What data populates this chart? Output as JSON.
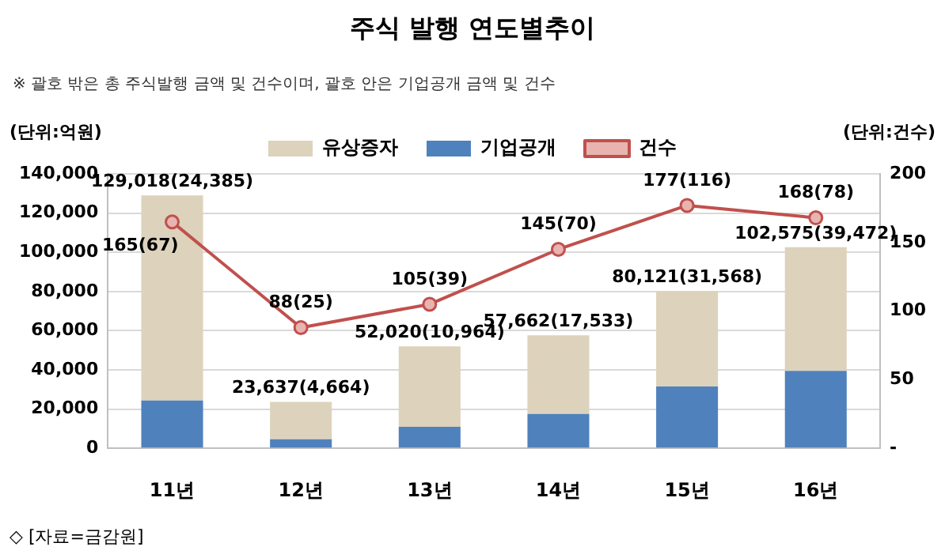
{
  "chart_data": {
    "type": "bar",
    "title": "주식 발행 연도별추이",
    "subtitle": "※ 괄호 밖은 총 주식발행 금액 및 건수이며, 괄호 안은 기업공개 금액 및 건수",
    "ylabel": "(단위:억원)",
    "y2label": "(단위:건수)",
    "annotations": [
      "◇ [자료=금감원]",
      {
        "text": "129,018(24,385)",
        "x": "11년",
        "y": 129018
      },
      {
        "text": "23,637(4,664)",
        "x": "12년",
        "y": 23637
      },
      {
        "text": "52,020(10,964)",
        "x": "13년",
        "y": 52020
      },
      {
        "text": "57,662(17,533)",
        "x": "14년",
        "y": 57662
      },
      {
        "text": "80,121(31,568)",
        "x": "15년",
        "y": 80121
      },
      {
        "text": "102,575(39,472)",
        "x": "16년",
        "y": 102575
      }
    ],
    "categories": [
      "11년",
      "12년",
      "13년",
      "14년",
      "15년",
      "16년"
    ],
    "stacked": true,
    "grid": "y",
    "legend": "top",
    "marker": "circle",
    "line_style": "solid",
    "ylim": [
      0,
      140000
    ],
    "yticks": [
      {
        "value": 0,
        "label": "0"
      },
      {
        "value": 20000,
        "label": "20,000"
      },
      {
        "value": 40000,
        "label": "40,000"
      },
      {
        "value": 60000,
        "label": "60,000"
      },
      {
        "value": 80000,
        "label": "80,000"
      },
      {
        "value": 100000,
        "label": "100,000"
      },
      {
        "value": 120000,
        "label": "120,000"
      },
      {
        "value": 140000,
        "label": "140,000"
      }
    ],
    "y2lim": [
      0,
      200
    ],
    "y2ticks": [
      {
        "value": 0,
        "label": "-"
      },
      50,
      100,
      150,
      200
    ],
    "series": [
      {
        "name": "기업공개",
        "color": "#4f81bd",
        "values": [
          24385,
          4664,
          10964,
          17533,
          31568,
          39472
        ]
      },
      {
        "name": "유상증자",
        "color": "#ddd2bc",
        "values": [
          104633,
          18973,
          41056,
          40129,
          48553,
          63103
        ]
      },
      {
        "name": "건수",
        "type": "line",
        "axis": "y2",
        "color": "#c0504d",
        "values": [
          165,
          88,
          105,
          145,
          177,
          168
        ],
        "value_labels": [
          "165(67)",
          "88(25)",
          "105(39)",
          "145(70)",
          "177(116)",
          "168(78)"
        ]
      }
    ]
  }
}
